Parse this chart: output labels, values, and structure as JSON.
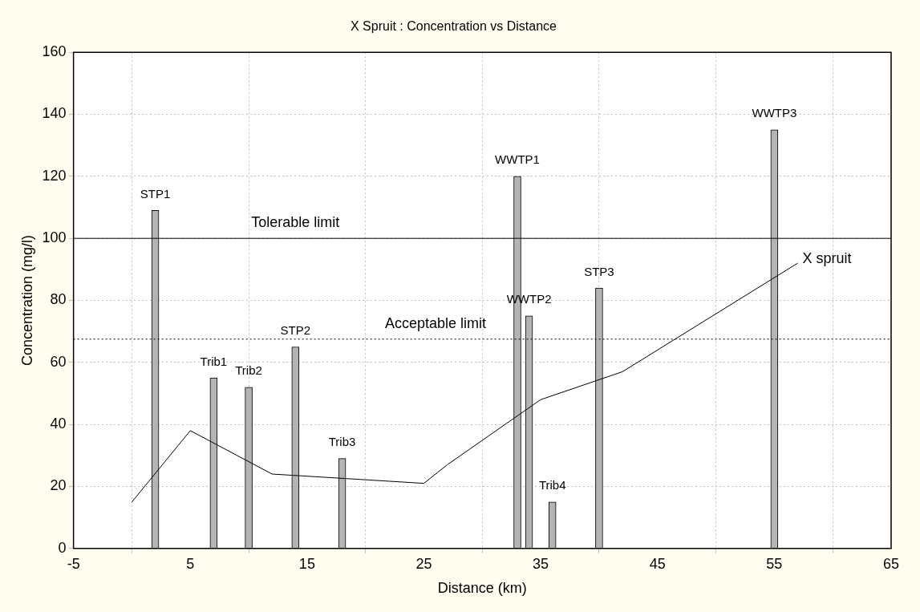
{
  "chart_data": {
    "type": "bar",
    "title": "X Spruit : Concentration vs Distance",
    "xlabel": "Distance (km)",
    "ylabel": "Concentration (mg/l)",
    "xlim": [
      -5,
      65
    ],
    "xticks": [
      -5,
      5,
      15,
      25,
      35,
      45,
      55,
      65
    ],
    "ylim": [
      0,
      160
    ],
    "yticks": [
      0,
      20,
      40,
      60,
      80,
      100,
      120,
      140,
      160
    ],
    "grid": true,
    "legend": false,
    "series": [
      {
        "color": "#b4b4b4",
        "x": [
          2,
          7,
          10,
          14,
          18,
          33,
          34,
          36,
          40,
          55
        ],
        "values": [
          109,
          55,
          52,
          65,
          29,
          120,
          75,
          15,
          84,
          135
        ]
      },
      {
        "type": "line",
        "name": "X spruit",
        "color": "#000000",
        "x": [
          0,
          5,
          12,
          25,
          27,
          35,
          42,
          57
        ],
        "values": [
          15,
          38,
          24,
          21,
          27,
          48,
          57,
          92
        ]
      }
    ],
    "ref_lines": [
      {
        "axis": "y",
        "value": 100,
        "color": "#000000",
        "line_style": "solid"
      },
      {
        "axis": "y",
        "value": 67.5,
        "color": "#000000",
        "line_style": "dotted"
      }
    ],
    "annotations": [
      {
        "text": "STP1",
        "x": 2,
        "y": 109
      },
      {
        "text": "Trib1",
        "x": 7,
        "y": 55
      },
      {
        "text": "Trib2",
        "x": 10,
        "y": 52
      },
      {
        "text": "STP2",
        "x": 14,
        "y": 65
      },
      {
        "text": "Trib3",
        "x": 18,
        "y": 29
      },
      {
        "text": "WWTP1",
        "x": 33,
        "y": 120
      },
      {
        "text": "WWTP2",
        "x": 34,
        "y": 75
      },
      {
        "text": "Trib4",
        "x": 36,
        "y": 15
      },
      {
        "text": "STP3",
        "x": 40,
        "y": 84
      },
      {
        "text": "WWTP3",
        "x": 55,
        "y": 135
      },
      {
        "text": "Tolerable limit",
        "x": 14,
        "y": 100
      },
      {
        "text": "Acceptable limit",
        "x": 26,
        "y": 67.5
      }
    ]
  }
}
